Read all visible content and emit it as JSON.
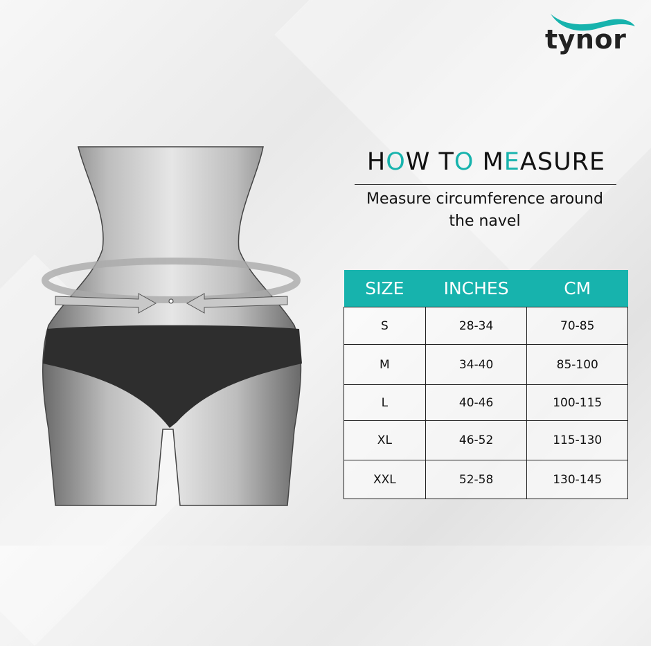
{
  "brand": {
    "logo_text": "tynor",
    "accent_color": "#17b3ad"
  },
  "title": {
    "parts": [
      "H",
      "O",
      "W T",
      "O",
      " M",
      "E",
      "ASURE"
    ]
  },
  "subtitle": {
    "line1": "Measure circumference around",
    "line2": "the navel"
  },
  "table": {
    "headers": [
      "SIZE",
      "INCHES",
      "CM"
    ],
    "rows": [
      [
        "S",
        "28-34",
        "70-85"
      ],
      [
        "M",
        "34-40",
        "85-100"
      ],
      [
        "L",
        "40-46",
        "100-115"
      ],
      [
        "XL",
        "46-52",
        "115-130"
      ],
      [
        "XXL",
        "52-58",
        "130-145"
      ]
    ]
  }
}
